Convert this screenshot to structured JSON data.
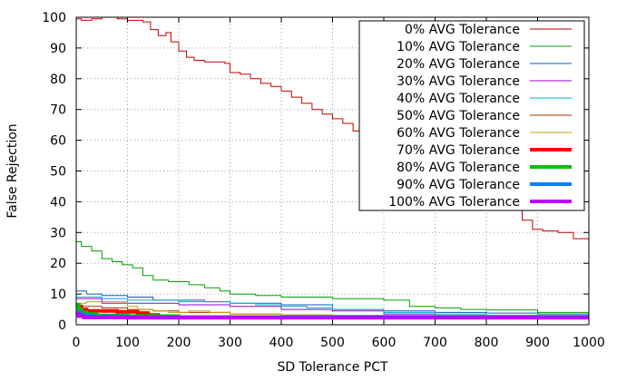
{
  "chart_data": {
    "type": "line",
    "title": "",
    "xlabel": "SD Tolerance PCT",
    "ylabel": "False Rejection",
    "xlim": [
      0,
      1000
    ],
    "ylim": [
      0,
      100
    ],
    "xticks": [
      0,
      100,
      200,
      300,
      400,
      500,
      600,
      700,
      800,
      900,
      1000
    ],
    "yticks": [
      0,
      10,
      20,
      30,
      40,
      50,
      60,
      70,
      80,
      90,
      100
    ],
    "grid": true,
    "legend_position": "top-right",
    "series": [
      {
        "name": "0% AVG Tolerance",
        "color": "#c00000",
        "thick": false,
        "points": [
          [
            0,
            99.5
          ],
          [
            10,
            99
          ],
          [
            30,
            99.5
          ],
          [
            50,
            100
          ],
          [
            80,
            99.5
          ],
          [
            100,
            99
          ],
          [
            130,
            98.5
          ],
          [
            145,
            96
          ],
          [
            160,
            94
          ],
          [
            175,
            95
          ],
          [
            185,
            92
          ],
          [
            200,
            89
          ],
          [
            215,
            87
          ],
          [
            230,
            86
          ],
          [
            250,
            85.5
          ],
          [
            270,
            85.5
          ],
          [
            290,
            85
          ],
          [
            300,
            82
          ],
          [
            320,
            81.5
          ],
          [
            340,
            80
          ],
          [
            360,
            78.5
          ],
          [
            380,
            77.5
          ],
          [
            400,
            76
          ],
          [
            420,
            74
          ],
          [
            440,
            72
          ],
          [
            460,
            70
          ],
          [
            480,
            68.5
          ],
          [
            500,
            67
          ],
          [
            520,
            65.5
          ],
          [
            540,
            63
          ],
          [
            560,
            61.5
          ],
          [
            580,
            60
          ],
          [
            620,
            57
          ],
          [
            660,
            54
          ],
          [
            700,
            51
          ],
          [
            740,
            48
          ],
          [
            770,
            45
          ],
          [
            800,
            42
          ],
          [
            840,
            38
          ],
          [
            870,
            34
          ],
          [
            890,
            31
          ],
          [
            910,
            30.5
          ],
          [
            940,
            30
          ],
          [
            970,
            28
          ],
          [
            1000,
            28
          ]
        ]
      },
      {
        "name": "10% AVG Tolerance",
        "color": "#00a000",
        "thick": false,
        "points": [
          [
            0,
            27
          ],
          [
            10,
            25.5
          ],
          [
            30,
            24
          ],
          [
            50,
            21.5
          ],
          [
            70,
            20.5
          ],
          [
            90,
            19.5
          ],
          [
            110,
            18.5
          ],
          [
            130,
            16
          ],
          [
            150,
            14.5
          ],
          [
            180,
            14
          ],
          [
            200,
            14
          ],
          [
            220,
            13
          ],
          [
            250,
            12
          ],
          [
            280,
            11
          ],
          [
            300,
            10
          ],
          [
            350,
            9.5
          ],
          [
            400,
            9
          ],
          [
            500,
            8.5
          ],
          [
            600,
            8
          ],
          [
            650,
            6
          ],
          [
            700,
            5.5
          ],
          [
            750,
            5
          ],
          [
            800,
            4.8
          ],
          [
            900,
            4
          ],
          [
            1000,
            3.5
          ]
        ]
      },
      {
        "name": "20% AVG Tolerance",
        "color": "#0060c0",
        "thick": false,
        "points": [
          [
            0,
            11
          ],
          [
            20,
            10
          ],
          [
            50,
            9.5
          ],
          [
            100,
            9
          ],
          [
            150,
            8
          ],
          [
            200,
            8
          ],
          [
            250,
            7.5
          ],
          [
            300,
            7
          ],
          [
            400,
            6.5
          ],
          [
            500,
            5
          ],
          [
            600,
            4.5
          ],
          [
            700,
            4
          ],
          [
            800,
            3.8
          ],
          [
            900,
            3.5
          ],
          [
            1000,
            3
          ]
        ]
      },
      {
        "name": "30% AVG Tolerance",
        "color": "#a000c0",
        "thick": false,
        "points": [
          [
            0,
            8.5
          ],
          [
            50,
            7
          ],
          [
            100,
            7
          ],
          [
            150,
            7
          ],
          [
            200,
            6.5
          ],
          [
            300,
            6
          ],
          [
            400,
            5
          ],
          [
            500,
            4.5
          ],
          [
            600,
            3.5
          ],
          [
            700,
            3
          ],
          [
            800,
            3
          ],
          [
            1000,
            2.8
          ]
        ]
      },
      {
        "name": "40% AVG Tolerance",
        "color": "#00b0c0",
        "thick": false,
        "points": [
          [
            0,
            9
          ],
          [
            50,
            8.5
          ],
          [
            100,
            8
          ],
          [
            150,
            8
          ],
          [
            200,
            7.5
          ],
          [
            300,
            7
          ],
          [
            350,
            6.5
          ],
          [
            400,
            6
          ],
          [
            450,
            5.5
          ],
          [
            500,
            5
          ],
          [
            600,
            4
          ],
          [
            700,
            3.5
          ],
          [
            800,
            3
          ],
          [
            1000,
            3
          ]
        ]
      },
      {
        "name": "50% AVG Tolerance",
        "color": "#a03000",
        "thick": false,
        "points": [
          [
            0,
            6
          ],
          [
            50,
            5.5
          ],
          [
            100,
            5
          ],
          [
            150,
            4.5
          ],
          [
            200,
            4
          ],
          [
            250,
            4
          ],
          [
            300,
            3.5
          ],
          [
            400,
            3.2
          ],
          [
            500,
            3
          ],
          [
            600,
            3
          ],
          [
            800,
            2.8
          ],
          [
            1000,
            2.8
          ]
        ]
      },
      {
        "name": "60% AVG Tolerance",
        "color": "#c0a000",
        "thick": false,
        "points": [
          [
            0,
            7
          ],
          [
            20,
            7.5
          ],
          [
            80,
            7.5
          ],
          [
            100,
            6
          ],
          [
            120,
            5
          ],
          [
            150,
            4.5
          ],
          [
            180,
            4
          ],
          [
            220,
            4.5
          ],
          [
            260,
            4
          ],
          [
            300,
            3.5
          ],
          [
            400,
            3.2
          ],
          [
            500,
            3
          ],
          [
            700,
            3
          ],
          [
            1000,
            2.8
          ]
        ]
      },
      {
        "name": "70% AVG Tolerance",
        "color": "#ff0000",
        "thick": true,
        "points": [
          [
            0,
            6
          ],
          [
            10,
            5
          ],
          [
            20,
            4.5
          ],
          [
            40,
            4.5
          ],
          [
            80,
            4.2
          ],
          [
            120,
            3.8
          ],
          [
            140,
            3.2
          ],
          [
            160,
            2.8
          ],
          [
            200,
            2.5
          ],
          [
            300,
            2.5
          ],
          [
            1000,
            2.5
          ]
        ]
      },
      {
        "name": "80% AVG Tolerance",
        "color": "#00c000",
        "thick": true,
        "points": [
          [
            0,
            6.5
          ],
          [
            5,
            5
          ],
          [
            10,
            4
          ],
          [
            20,
            3.5
          ],
          [
            40,
            3
          ],
          [
            100,
            2.8
          ],
          [
            200,
            2.5
          ],
          [
            1000,
            2.5
          ]
        ]
      },
      {
        "name": "90% AVG Tolerance",
        "color": "#0080ff",
        "thick": true,
        "points": [
          [
            0,
            4
          ],
          [
            10,
            3
          ],
          [
            30,
            2.7
          ],
          [
            100,
            2.5
          ],
          [
            1000,
            2.5
          ]
        ]
      },
      {
        "name": "100% AVG Tolerance",
        "color": "#c000ff",
        "thick": true,
        "points": [
          [
            0,
            3.5
          ],
          [
            5,
            2.8
          ],
          [
            15,
            2.4
          ],
          [
            100,
            2.3
          ],
          [
            1000,
            2.3
          ]
        ]
      }
    ]
  }
}
